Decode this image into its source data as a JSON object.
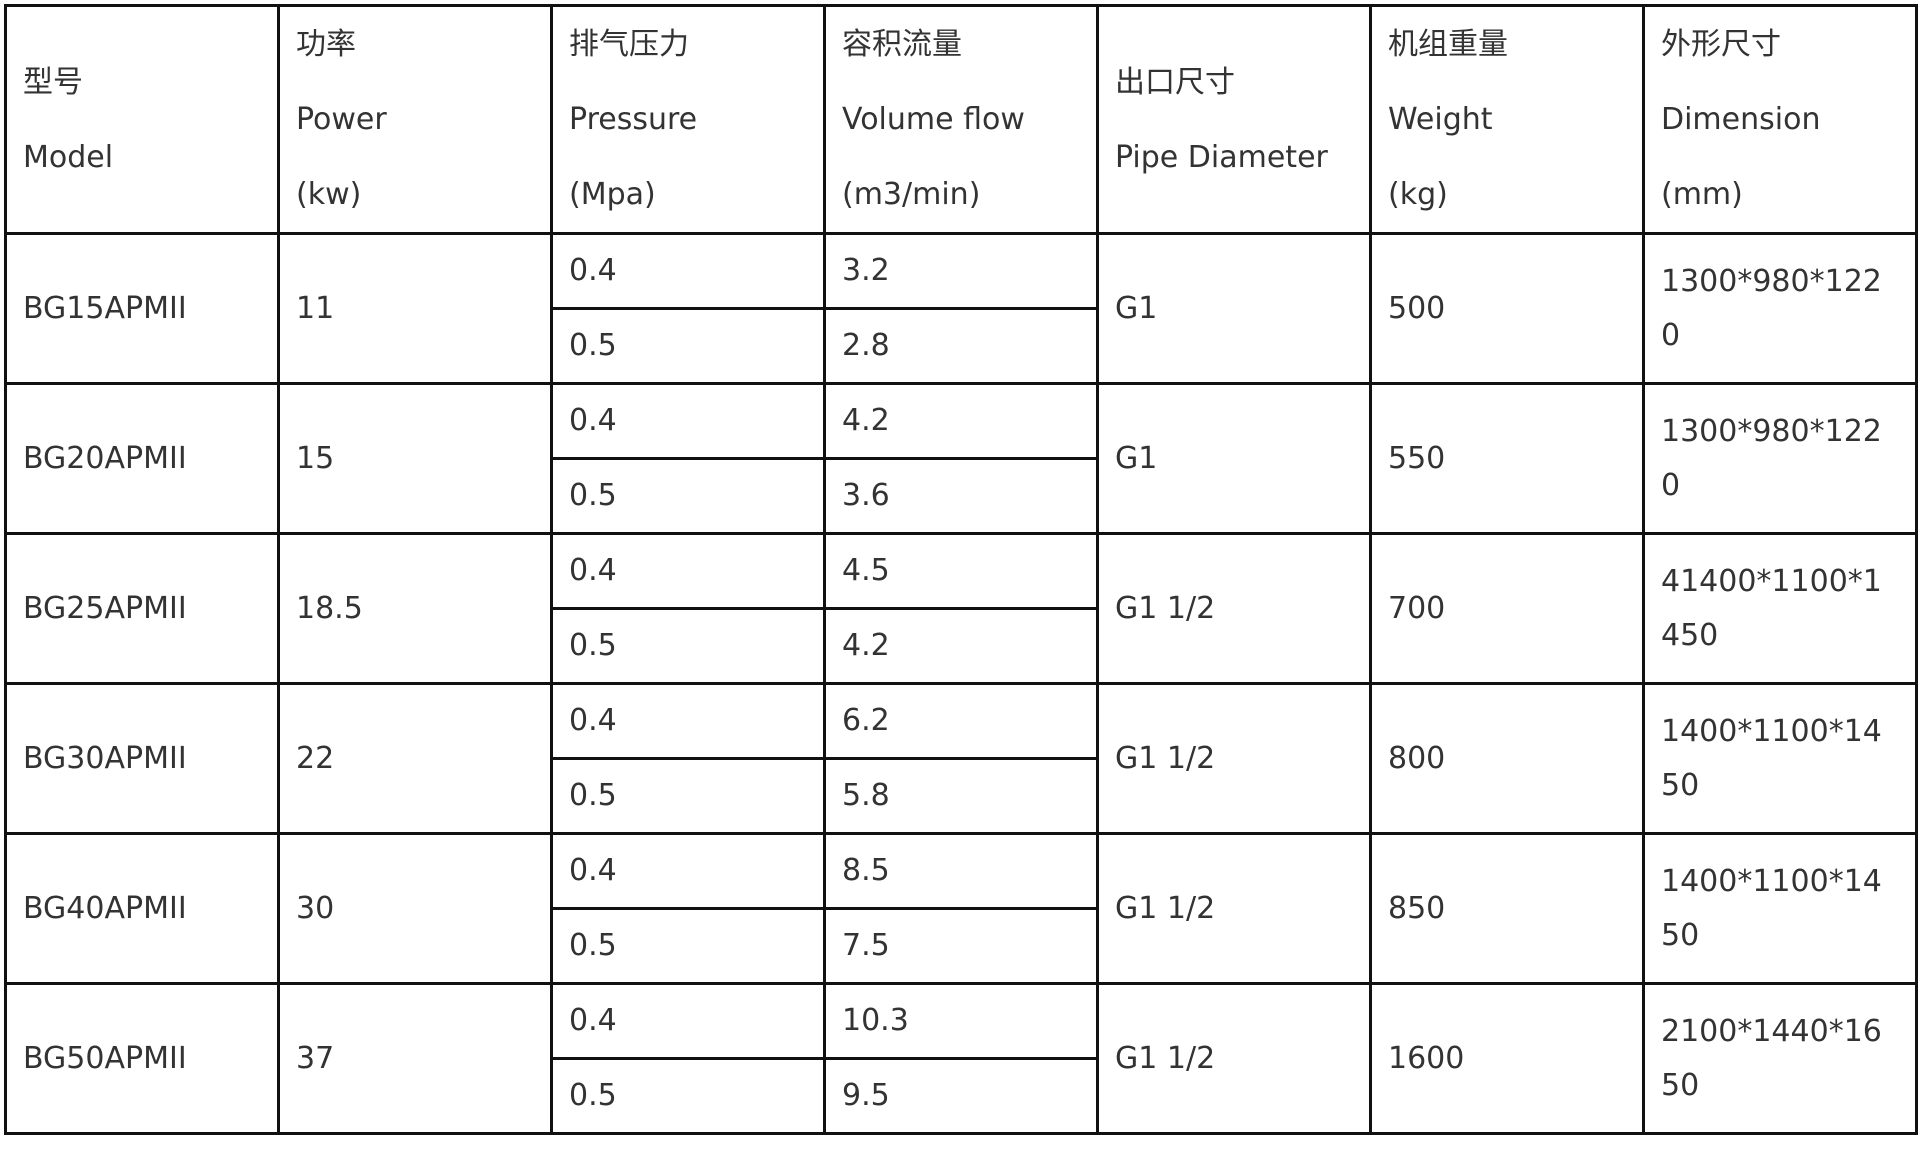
{
  "headers": [
    {
      "zh": "型号",
      "en": "Model",
      "unit": ""
    },
    {
      "zh": "功率",
      "en": "Power",
      "unit": "(kw)"
    },
    {
      "zh": "排气压力",
      "en": "Pressure",
      "unit": "(Mpa)"
    },
    {
      "zh": "容积流量",
      "en": "Volume flow",
      "unit": "(m3/min)"
    },
    {
      "zh": "出口尺寸",
      "en": "Pipe Diameter",
      "unit": ""
    },
    {
      "zh": "机组重量",
      "en": "Weight",
      "unit": "(kg)"
    },
    {
      "zh": "外形尺寸",
      "en": "Dimension",
      "unit": "(mm)"
    }
  ],
  "rows": [
    {
      "model": "BG15APMII",
      "power": "11",
      "p1": "0.4",
      "f1": "3.2",
      "p2": "0.5",
      "f2": "2.8",
      "pipe": "G1",
      "weight": "500",
      "dim": "1300*980*1220"
    },
    {
      "model": "BG20APMII",
      "power": "15",
      "p1": "0.4",
      "f1": "4.2",
      "p2": "0.5",
      "f2": "3.6",
      "pipe": "G1",
      "weight": "550",
      "dim": "1300*980*1220"
    },
    {
      "model": "BG25APMII",
      "power": "18.5",
      "p1": "0.4",
      "f1": "4.5",
      "p2": "0.5",
      "f2": "4.2",
      "pipe": "G1 1/2",
      "weight": "700",
      "dim": "41400*1100*1450"
    },
    {
      "model": "BG30APMII",
      "power": "22",
      "p1": "0.4",
      "f1": "6.2",
      "p2": "0.5",
      "f2": "5.8",
      "pipe": "G1 1/2",
      "weight": "800",
      "dim": "1400*1100*1450"
    },
    {
      "model": "BG40APMII",
      "power": "30",
      "p1": "0.4",
      "f1": "8.5",
      "p2": "0.5",
      "f2": "7.5",
      "pipe": "G1 1/2",
      "weight": "850",
      "dim": "1400*1100*1450"
    },
    {
      "model": "BG50APMII",
      "power": "37",
      "p1": "0.4",
      "f1": "10.3",
      "p2": "0.5",
      "f2": "9.5",
      "pipe": "G1 1/2",
      "weight": "1600",
      "dim": "2100*1440*1650"
    }
  ]
}
